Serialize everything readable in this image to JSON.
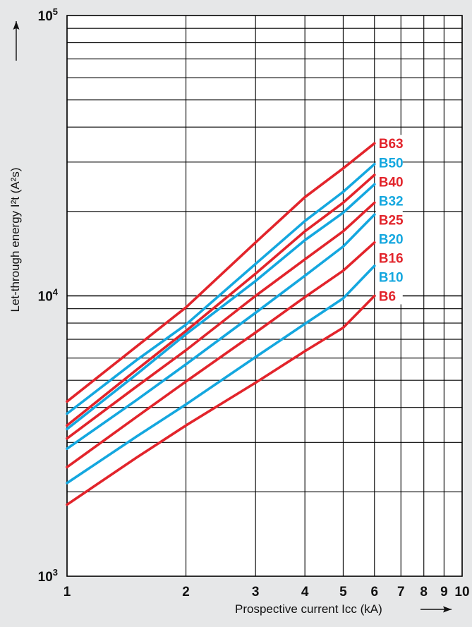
{
  "chart_data": {
    "type": "line",
    "title": "",
    "xlabel": "Prospective current Icc (kA)",
    "ylabel": "Let-through energy I²t (A²s)",
    "x_scale": "log",
    "y_scale": "log",
    "xlim": [
      1,
      10
    ],
    "ylim": [
      1000,
      100000
    ],
    "grid": true,
    "x_ticks": [
      1,
      2,
      3,
      4,
      5,
      6,
      7,
      8,
      9,
      10
    ],
    "x_tick_labels": [
      "1",
      "2",
      "3",
      "4",
      "5",
      "6",
      "7",
      "8",
      "9",
      "10"
    ],
    "y_tick_labels": [
      {
        "value": 1000,
        "base": "10",
        "exp": "3"
      },
      {
        "value": 10000,
        "base": "10",
        "exp": "4"
      },
      {
        "value": 100000,
        "base": "10",
        "exp": "5"
      }
    ],
    "legend": "labels at line ends",
    "colors": {
      "red": "#e2242b",
      "blue": "#14a7df"
    },
    "series": [
      {
        "name": "B63",
        "color": "#e2242b",
        "points": [
          [
            1,
            4200
          ],
          [
            1.5,
            6600
          ],
          [
            2,
            9100
          ],
          [
            3,
            15500
          ],
          [
            4,
            22500
          ],
          [
            5,
            28500
          ],
          [
            6,
            35000
          ]
        ]
      },
      {
        "name": "B50",
        "color": "#14a7df",
        "points": [
          [
            1,
            3800
          ],
          [
            1.5,
            5900
          ],
          [
            2,
            7900
          ],
          [
            3,
            13000
          ],
          [
            4,
            18500
          ],
          [
            5,
            23500
          ],
          [
            6,
            29500
          ]
        ]
      },
      {
        "name": "B40",
        "color": "#e2242b",
        "points": [
          [
            1,
            3450
          ],
          [
            1.5,
            5450
          ],
          [
            2,
            7500
          ],
          [
            3,
            12000
          ],
          [
            4,
            17000
          ],
          [
            5,
            21500
          ],
          [
            6,
            27000
          ]
        ]
      },
      {
        "name": "B32",
        "color": "#14a7df",
        "points": [
          [
            1,
            3350
          ],
          [
            1.5,
            5250
          ],
          [
            2,
            7300
          ],
          [
            3,
            11300
          ],
          [
            4,
            15800
          ],
          [
            5,
            19800
          ],
          [
            6,
            25000
          ]
        ]
      },
      {
        "name": "B25",
        "color": "#e2242b",
        "points": [
          [
            1,
            3100
          ],
          [
            1.5,
            4750
          ],
          [
            2,
            6400
          ],
          [
            3,
            10000
          ],
          [
            4,
            13500
          ],
          [
            5,
            17000
          ],
          [
            6,
            21500
          ]
        ]
      },
      {
        "name": "B20",
        "color": "#14a7df",
        "points": [
          [
            1,
            2850
          ],
          [
            1.5,
            4250
          ],
          [
            2,
            5700
          ],
          [
            3,
            8700
          ],
          [
            4,
            11800
          ],
          [
            5,
            15000
          ],
          [
            6,
            19500
          ]
        ]
      },
      {
        "name": "B16",
        "color": "#e2242b",
        "points": [
          [
            1,
            2450
          ],
          [
            1.5,
            3700
          ],
          [
            2,
            4950
          ],
          [
            3,
            7400
          ],
          [
            4,
            9900
          ],
          [
            5,
            12300
          ],
          [
            6,
            15500
          ]
        ]
      },
      {
        "name": "B10",
        "color": "#14a7df",
        "points": [
          [
            1,
            2150
          ],
          [
            1.5,
            3150
          ],
          [
            2,
            4100
          ],
          [
            3,
            6050
          ],
          [
            4,
            7950
          ],
          [
            5,
            9800
          ],
          [
            6,
            12800
          ]
        ]
      },
      {
        "name": "B6",
        "color": "#e2242b",
        "points": [
          [
            1,
            1800
          ],
          [
            1.5,
            2650
          ],
          [
            2,
            3450
          ],
          [
            3,
            4900
          ],
          [
            4,
            6350
          ],
          [
            5,
            7700
          ],
          [
            6,
            10000
          ]
        ]
      }
    ]
  }
}
